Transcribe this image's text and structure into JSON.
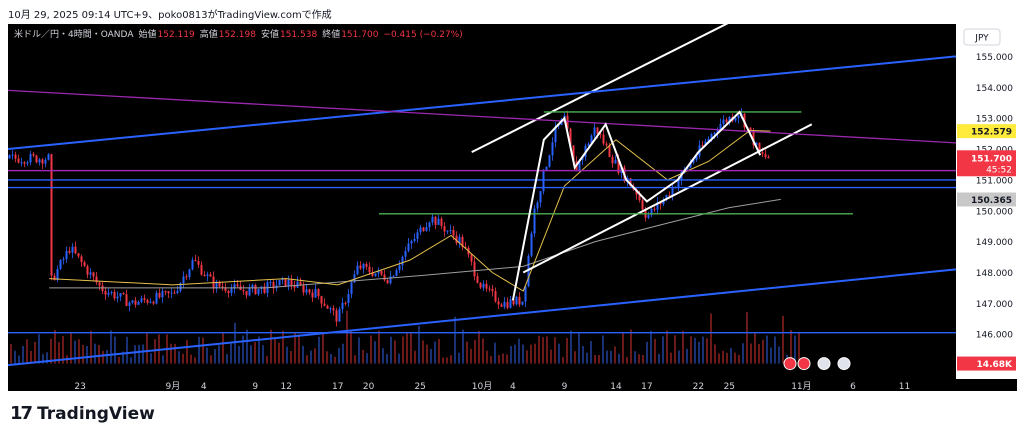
{
  "header": {
    "caption": "10月 29, 2025 09:14 UTC+9、poko0813がTradingView.comで作成"
  },
  "footer": {
    "logo_mark": "17",
    "logo_text": "TradingView"
  },
  "colors": {
    "up": "#2962ff",
    "down": "#f23645",
    "bg": "#000000",
    "trend_white": "#ffffff",
    "channel_blue": "#2962ff",
    "purple": "#9c27b0",
    "green": "#4caf50",
    "ma_short": "#e5c04c",
    "ma_long": "#9e9e9e"
  },
  "chart_data": {
    "type": "candlestick",
    "legend": {
      "symbol": "米ドル／円・4時間・OANDA",
      "open_label": "始値",
      "open": "152.119",
      "high_label": "高値",
      "high": "152.198",
      "low_label": "安値",
      "low": "151.538",
      "close_label": "終値",
      "close": "151.700",
      "change": "−0.415 (−0.27%)"
    },
    "currency": "JPY",
    "y_ticks": [
      "155.000",
      "154.000",
      "153.000",
      "152.000",
      "151.000",
      "150.000",
      "149.000",
      "148.000",
      "147.000",
      "146.000",
      "145.000"
    ],
    "ylim": [
      144.55,
      156.05
    ],
    "x_ticks": [
      "23",
      "9月",
      "4",
      "9",
      "12",
      "17",
      "20",
      "25",
      "10月",
      "4",
      "9",
      "14",
      "17",
      "22",
      "25",
      "11月",
      "6",
      "11"
    ],
    "price_labels": {
      "ma_short": "152.579",
      "last_price": "151.700",
      "countdown": "45:52",
      "ma_long": "150.365",
      "volume": "14.68K"
    },
    "price_path": [
      {
        "d": "08-20",
        "p": 147.6
      },
      {
        "d": "08-22",
        "p": 148.8
      },
      {
        "d": "08-25",
        "p": 147.5
      },
      {
        "d": "08-28",
        "p": 147.0
      },
      {
        "d": "09-01",
        "p": 147.3
      },
      {
        "d": "09-03",
        "p": 148.4
      },
      {
        "d": "09-05",
        "p": 147.6
      },
      {
        "d": "09-08",
        "p": 147.4
      },
      {
        "d": "09-10",
        "p": 147.5
      },
      {
        "d": "09-12",
        "p": 147.7
      },
      {
        "d": "09-15",
        "p": 147.3
      },
      {
        "d": "09-17",
        "p": 146.5
      },
      {
        "d": "09-19",
        "p": 148.2
      },
      {
        "d": "09-22",
        "p": 147.8
      },
      {
        "d": "09-24",
        "p": 148.9
      },
      {
        "d": "09-26",
        "p": 149.8
      },
      {
        "d": "09-29",
        "p": 149.0
      },
      {
        "d": "10-01",
        "p": 147.5
      },
      {
        "d": "10-03",
        "p": 147.0
      },
      {
        "d": "10-05",
        "p": 147.1
      },
      {
        "d": "10-06",
        "p": 149.9
      },
      {
        "d": "10-08",
        "p": 152.5
      },
      {
        "d": "10-09",
        "p": 153.0
      },
      {
        "d": "10-10",
        "p": 151.3
      },
      {
        "d": "10-12",
        "p": 152.7
      },
      {
        "d": "10-14",
        "p": 151.5
      },
      {
        "d": "10-16",
        "p": 150.6
      },
      {
        "d": "10-17",
        "p": 149.8
      },
      {
        "d": "10-19",
        "p": 150.5
      },
      {
        "d": "10-20",
        "p": 151.0
      },
      {
        "d": "10-22",
        "p": 151.9
      },
      {
        "d": "10-24",
        "p": 152.8
      },
      {
        "d": "10-26",
        "p": 153.2
      },
      {
        "d": "10-28",
        "p": 151.8
      },
      {
        "d": "10-29",
        "p": 151.7
      }
    ],
    "ma_short_path": [
      {
        "d": "08-20",
        "p": 147.8
      },
      {
        "d": "09-01",
        "p": 147.6
      },
      {
        "d": "09-12",
        "p": 147.8
      },
      {
        "d": "09-17",
        "p": 147.6
      },
      {
        "d": "09-24",
        "p": 148.4
      },
      {
        "d": "09-28",
        "p": 149.2
      },
      {
        "d": "10-02",
        "p": 148.0
      },
      {
        "d": "10-05",
        "p": 147.4
      },
      {
        "d": "10-09",
        "p": 150.8
      },
      {
        "d": "10-14",
        "p": 152.3
      },
      {
        "d": "10-19",
        "p": 151.0
      },
      {
        "d": "10-23",
        "p": 151.6
      },
      {
        "d": "10-27",
        "p": 152.6
      },
      {
        "d": "10-29",
        "p": 152.58
      }
    ],
    "ma_long_path": [
      {
        "d": "08-20",
        "p": 147.5
      },
      {
        "d": "09-10",
        "p": 147.5
      },
      {
        "d": "09-25",
        "p": 147.9
      },
      {
        "d": "10-05",
        "p": 148.2
      },
      {
        "d": "10-12",
        "p": 149.0
      },
      {
        "d": "10-19",
        "p": 149.6
      },
      {
        "d": "10-25",
        "p": 150.1
      },
      {
        "d": "10-30",
        "p": 150.37
      }
    ],
    "drawings": [
      {
        "kind": "trend-white",
        "p1": {
          "d": "10-05",
          "p": 148.0
        },
        "p2": {
          "d": "11-02",
          "p": 152.8
        }
      },
      {
        "kind": "trend-white",
        "p1": {
          "d": "09-30",
          "p": 151.9
        },
        "p2": {
          "d": "10-25",
          "p": 156.1
        }
      },
      {
        "kind": "trend-blue",
        "p1": {
          "d": "08-16",
          "p": 152.0
        },
        "p2": {
          "d": "11-16",
          "p": 155.0
        }
      },
      {
        "kind": "trend-blue",
        "p1": {
          "d": "08-16",
          "p": 145.0
        },
        "p2": {
          "d": "11-16",
          "p": 148.1
        }
      },
      {
        "kind": "trend-purple",
        "p1": {
          "d": "08-16",
          "p": 153.9
        },
        "p2": {
          "d": "11-16",
          "p": 152.2
        }
      },
      {
        "kind": "hline-blue",
        "p": 146.05
      },
      {
        "kind": "hline-blue",
        "p": 150.75
      },
      {
        "kind": "hline-blue",
        "p": 151.0
      },
      {
        "kind": "hline-purple",
        "p": 151.3
      },
      {
        "kind": "hline-green",
        "p": 153.2,
        "from": "10-07",
        "to": "11-01"
      },
      {
        "kind": "hline-green",
        "p": 149.9,
        "from": "09-21",
        "to": "11-06"
      }
    ]
  }
}
